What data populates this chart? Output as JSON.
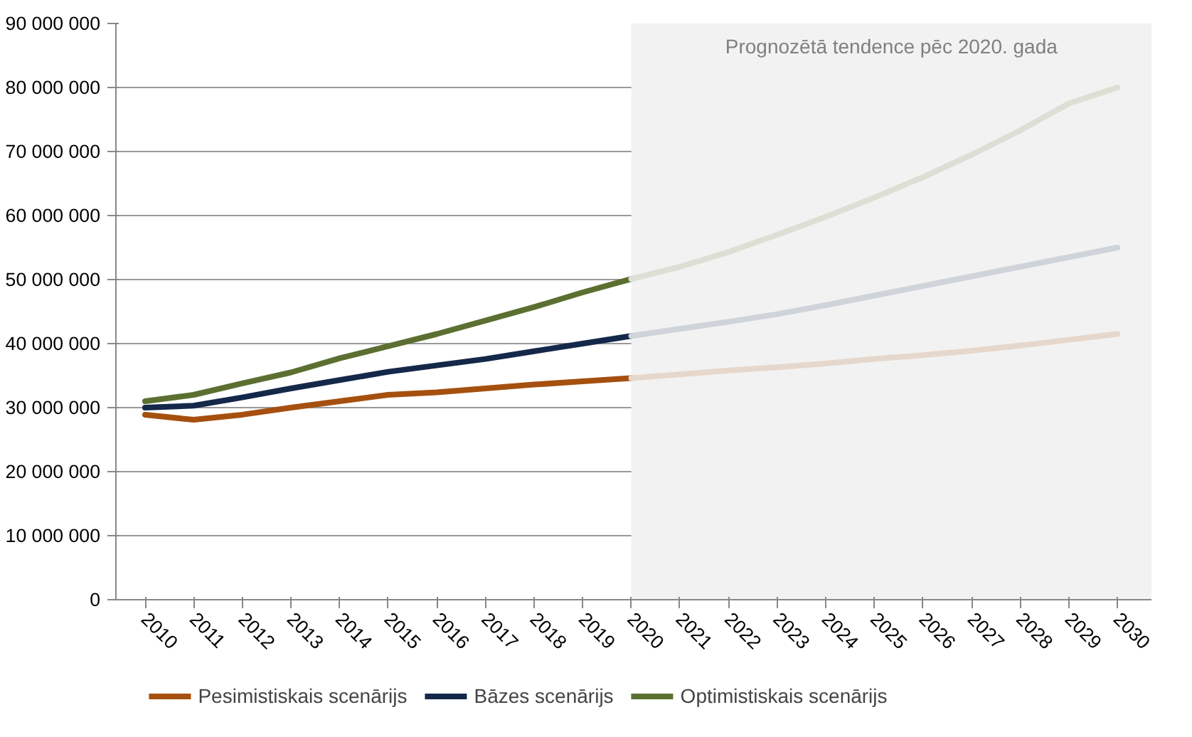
{
  "chart_data": {
    "type": "line",
    "x": [
      2010,
      2011,
      2012,
      2013,
      2014,
      2015,
      2016,
      2017,
      2018,
      2019,
      2020
    ],
    "series": [
      {
        "name": "Pesimistiskais scenārijs",
        "color": "#a5500f",
        "values": [
          28900000,
          28100000,
          28900000,
          30000000,
          31000000,
          32000000,
          32400000,
          33000000,
          33600000,
          34100000,
          34600000
        ]
      },
      {
        "name": "Bāzes scenārijs",
        "color": "#14284a",
        "values": [
          30000000,
          30300000,
          31600000,
          33000000,
          34300000,
          35600000,
          36600000,
          37600000,
          38800000,
          40000000,
          41200000
        ]
      },
      {
        "name": "Optimistiskais scenārijs",
        "color": "#5b7030",
        "values": [
          31000000,
          32000000,
          33800000,
          35500000,
          37700000,
          39600000,
          41500000,
          43600000,
          45700000,
          48000000,
          50100000
        ]
      },
      {
        "color": "#e6d7cc",
        "x": [
          2020,
          2021,
          2022,
          2023,
          2024,
          2025,
          2026,
          2027,
          2028,
          2029,
          2030
        ],
        "values": [
          34600000,
          35200000,
          35800000,
          36300000,
          36900000,
          37600000,
          38200000,
          38900000,
          39700000,
          40600000,
          41500000
        ]
      },
      {
        "color": "#cfd4da",
        "x": [
          2020,
          2021,
          2022,
          2023,
          2024,
          2025,
          2026,
          2027,
          2028,
          2029,
          2030
        ],
        "values": [
          41200000,
          42300000,
          43400000,
          44600000,
          46000000,
          47500000,
          49000000,
          50500000,
          52000000,
          53500000,
          55000000
        ]
      },
      {
        "color": "#dddfd5",
        "x": [
          2020,
          2021,
          2022,
          2023,
          2024,
          2025,
          2026,
          2027,
          2028,
          2029,
          2030
        ],
        "values": [
          50100000,
          52000000,
          54300000,
          57000000,
          59800000,
          62800000,
          66000000,
          69500000,
          73300000,
          77500000,
          80000000
        ]
      }
    ],
    "xlim": [
      2009.4,
      2030.7
    ],
    "xticks": [
      2010,
      2011,
      2012,
      2013,
      2014,
      2015,
      2016,
      2017,
      2018,
      2019,
      2020,
      2021,
      2022,
      2023,
      2024,
      2025,
      2026,
      2027,
      2028,
      2029,
      2030
    ],
    "ylim": [
      0,
      90000000
    ],
    "yticks": [
      0,
      {
        "value": 10000000,
        "label": "10 000 000"
      },
      {
        "value": 20000000,
        "label": "20 000 000"
      },
      {
        "value": 30000000,
        "label": "30 000 000"
      },
      {
        "value": 40000000,
        "label": "40 000 000"
      },
      {
        "value": 50000000,
        "label": "50 000 000"
      },
      {
        "value": 60000000,
        "label": "60 000 000"
      },
      {
        "value": 70000000,
        "label": "70 000 000"
      },
      {
        "value": 80000000,
        "label": "80 000 000"
      },
      {
        "value": 90000000,
        "label": "90 000 000"
      }
    ],
    "bands": [
      {
        "axis": "x",
        "from": 2020,
        "to": 2030.7,
        "label": "Prognozētā tendence pēc 2020. gada",
        "color": "#f2f2f2"
      }
    ],
    "grid": "y",
    "legend": "bottom",
    "marker": "none",
    "line_style": "solid"
  }
}
